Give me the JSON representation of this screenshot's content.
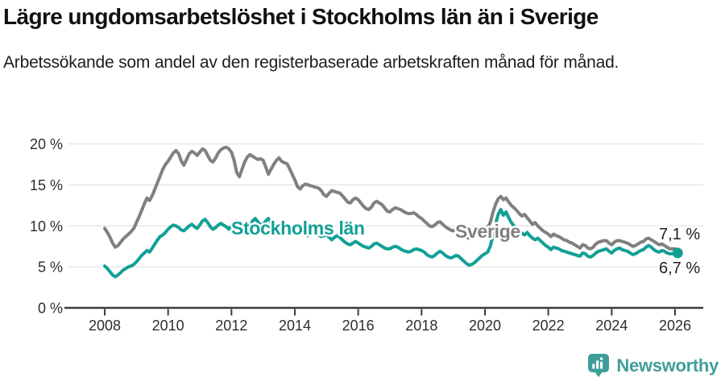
{
  "header": {
    "title": "Lägre ungdomsarbetslöshet i Stockholms län än i Sverige",
    "subtitle": "Arbetssökande som andel av den registerbaserade arbetskraften månad för månad."
  },
  "footer": {
    "brand": "Newsworthy",
    "logo_icon": "newsworthy-speech-bubble-bar-chart-icon"
  },
  "colors": {
    "accent_teal": "#12a096",
    "series_gray": "#808080",
    "axis": "#3d3d3d",
    "tick_text": "#2e2e2e",
    "gridline": "#e4e4e4",
    "end_label_text": "#1f1f1f",
    "logo_teal": "#3f9e9a",
    "background": "#ffffff"
  },
  "chart_data": {
    "type": "line",
    "title": "Lägre ungdomsarbetslöshet i Stockholms län än i Sverige",
    "xlabel": "",
    "ylabel": "",
    "frequency": "monthly",
    "x_start": "2008-01",
    "x_end": "2026-02",
    "xlim": [
      2006.75,
      2026.9
    ],
    "ylim": [
      0,
      21
    ],
    "grid": "horizontal",
    "legend_position": "inline-labels",
    "x_ticks": [
      2008,
      2010,
      2012,
      2014,
      2016,
      2018,
      2020,
      2022,
      2024,
      2026
    ],
    "x_tick_labels": [
      "2008",
      "2010",
      "2012",
      "2014",
      "2016",
      "2018",
      "2020",
      "2022",
      "2024",
      "2026"
    ],
    "y_ticks": [
      0,
      5,
      10,
      15,
      20
    ],
    "y_tick_labels": [
      "0 %",
      "5 %",
      "10 %",
      "15 %",
      "20 %"
    ],
    "series": [
      {
        "name": "Sverige",
        "color": "#808080",
        "end_label": "7,1 %",
        "end_dot": false,
        "values": [
          9.7,
          9.2,
          8.6,
          7.9,
          7.4,
          7.6,
          8.0,
          8.4,
          8.7,
          9.0,
          9.3,
          9.7,
          10.4,
          11.1,
          11.9,
          12.7,
          13.4,
          13.1,
          13.7,
          14.5,
          15.3,
          16.1,
          16.9,
          17.5,
          17.9,
          18.4,
          18.9,
          19.2,
          18.8,
          17.9,
          17.4,
          18.1,
          18.8,
          19.1,
          18.9,
          18.6,
          19.0,
          19.4,
          19.2,
          18.6,
          18.0,
          17.8,
          18.3,
          18.9,
          19.3,
          19.5,
          19.6,
          19.4,
          19.0,
          18.0,
          16.5,
          16.0,
          16.9,
          17.8,
          18.4,
          18.7,
          18.5,
          18.3,
          18.1,
          18.2,
          18.0,
          17.2,
          16.3,
          16.9,
          17.5,
          18.0,
          18.3,
          17.9,
          17.7,
          17.6,
          17.0,
          16.3,
          15.6,
          14.8,
          14.5,
          14.9,
          15.1,
          15.0,
          14.9,
          14.8,
          14.7,
          14.6,
          14.3,
          13.8,
          13.6,
          14.0,
          14.3,
          14.2,
          14.1,
          14.0,
          13.7,
          13.3,
          12.9,
          12.8,
          13.2,
          13.4,
          13.2,
          12.8,
          12.4,
          12.1,
          12.0,
          12.3,
          12.8,
          13.0,
          12.8,
          12.6,
          12.2,
          11.8,
          11.7,
          12.0,
          12.2,
          12.1,
          12.0,
          11.8,
          11.6,
          11.5,
          11.5,
          11.6,
          11.4,
          11.1,
          10.9,
          10.6,
          10.3,
          10.0,
          9.9,
          10.1,
          10.4,
          10.5,
          10.2,
          9.9,
          9.7,
          9.5,
          9.4,
          9.6,
          9.5,
          9.2,
          8.9,
          8.6,
          8.5,
          8.6,
          8.8,
          9.0,
          9.2,
          9.4,
          9.6,
          9.8,
          10.4,
          11.6,
          12.6,
          13.3,
          13.6,
          13.2,
          13.4,
          12.9,
          12.5,
          12.2,
          11.9,
          11.5,
          11.2,
          11.4,
          11.0,
          10.6,
          10.2,
          10.4,
          10.0,
          9.7,
          9.4,
          9.2,
          9.0,
          8.7,
          9.0,
          8.8,
          8.7,
          8.5,
          8.3,
          8.2,
          8.0,
          7.9,
          7.7,
          7.5,
          7.3,
          7.7,
          7.6,
          7.3,
          7.2,
          7.4,
          7.8,
          8.0,
          8.1,
          8.2,
          8.2,
          7.9,
          7.7,
          8.0,
          8.2,
          8.2,
          8.1,
          8.0,
          7.9,
          7.7,
          7.5,
          7.6,
          7.8,
          8.0,
          8.1,
          8.4,
          8.5,
          8.3,
          8.1,
          7.9,
          7.7,
          7.8,
          7.6,
          7.4,
          7.2,
          7.2,
          7.2,
          7.1
        ]
      },
      {
        "name": "Stockholms län",
        "color": "#12a096",
        "end_label": "6,7 %",
        "end_dot": true,
        "values": [
          5.1,
          4.8,
          4.4,
          4.0,
          3.8,
          4.0,
          4.3,
          4.6,
          4.8,
          5.0,
          5.1,
          5.3,
          5.6,
          6.0,
          6.4,
          6.7,
          7.0,
          6.8,
          7.3,
          7.8,
          8.3,
          8.7,
          8.9,
          9.2,
          9.6,
          9.9,
          10.1,
          10.0,
          9.8,
          9.5,
          9.4,
          9.7,
          10.0,
          10.2,
          9.9,
          9.7,
          10.1,
          10.6,
          10.8,
          10.4,
          9.9,
          9.6,
          9.8,
          10.1,
          10.3,
          10.1,
          9.9,
          9.6,
          10.0,
          10.4,
          10.6,
          10.1,
          9.6,
          9.3,
          9.6,
          10.0,
          10.6,
          10.9,
          10.5,
          10.1,
          10.2,
          10.6,
          10.9,
          10.4,
          9.9,
          9.6,
          9.8,
          10.1,
          10.3,
          10.0,
          9.7,
          9.5,
          9.8,
          10.1,
          9.7,
          9.3,
          9.0,
          8.8,
          9.1,
          9.4,
          9.2,
          8.9,
          8.7,
          8.8,
          8.9,
          8.6,
          8.3,
          8.6,
          8.8,
          8.6,
          8.3,
          8.0,
          7.8,
          7.7,
          7.9,
          8.1,
          7.9,
          7.7,
          7.5,
          7.4,
          7.3,
          7.5,
          7.8,
          7.9,
          7.7,
          7.5,
          7.3,
          7.2,
          7.2,
          7.4,
          7.5,
          7.4,
          7.2,
          7.0,
          6.9,
          6.8,
          6.9,
          7.1,
          7.2,
          7.1,
          7.0,
          6.8,
          6.5,
          6.3,
          6.2,
          6.4,
          6.7,
          6.9,
          6.7,
          6.4,
          6.2,
          6.1,
          6.2,
          6.4,
          6.3,
          6.0,
          5.7,
          5.4,
          5.2,
          5.3,
          5.5,
          5.8,
          6.1,
          6.4,
          6.6,
          6.8,
          7.5,
          8.8,
          10.2,
          11.4,
          12.0,
          11.3,
          11.7,
          11.0,
          10.4,
          10.0,
          9.7,
          9.4,
          9.1,
          8.9,
          9.2,
          8.8,
          8.5,
          8.3,
          8.5,
          8.2,
          7.9,
          7.6,
          7.4,
          7.1,
          7.4,
          7.3,
          7.2,
          7.0,
          6.9,
          6.8,
          6.7,
          6.6,
          6.5,
          6.4,
          6.3,
          6.7,
          6.6,
          6.3,
          6.2,
          6.4,
          6.7,
          6.9,
          7.0,
          7.1,
          7.2,
          6.9,
          6.7,
          7.0,
          7.2,
          7.3,
          7.1,
          7.0,
          6.9,
          6.7,
          6.5,
          6.6,
          6.8,
          7.0,
          7.1,
          7.4,
          7.6,
          7.4,
          7.1,
          6.9,
          6.8,
          7.0,
          6.9,
          6.7,
          6.6,
          6.6,
          6.7,
          6.7
        ]
      }
    ]
  }
}
